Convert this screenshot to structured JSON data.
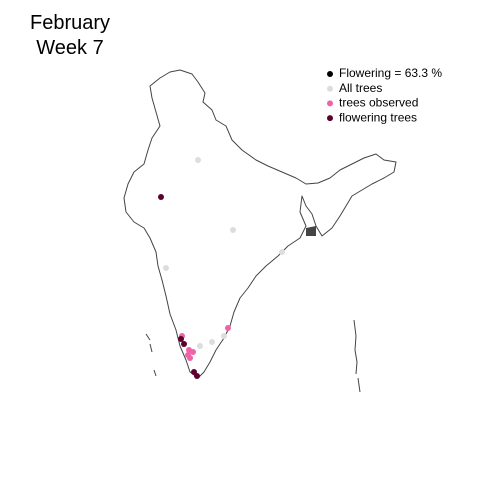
{
  "title": {
    "line1": "February",
    "line2": "Week 7"
  },
  "legend": [
    {
      "label": "Flowering = 63.3 %",
      "color": "#000000"
    },
    {
      "label": "All trees",
      "color": "#dddddd"
    },
    {
      "label": "trees observed",
      "color": "#f062a8"
    },
    {
      "label": "flowering trees",
      "color": "#5c0030"
    }
  ]
}
